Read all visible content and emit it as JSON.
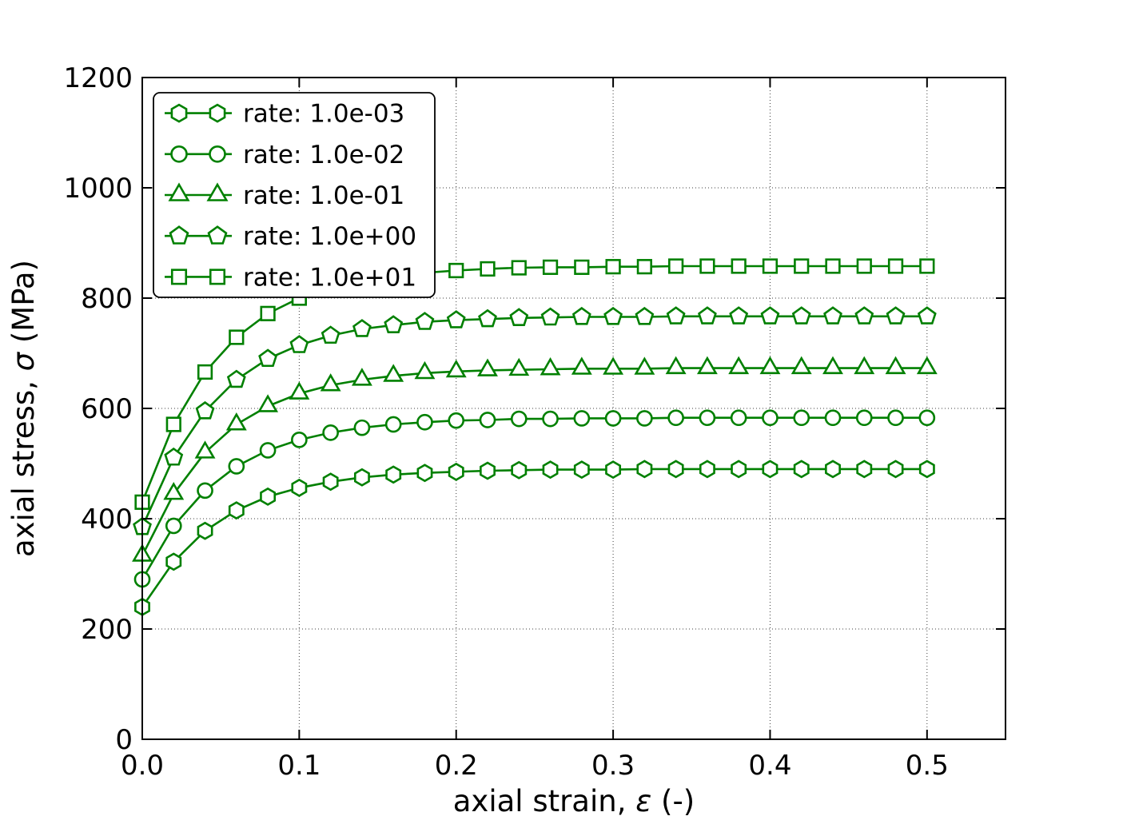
{
  "chart_data": {
    "type": "line",
    "title": "",
    "xlabel": "axial strain, ε (-)",
    "ylabel": "axial stress, σ (MPa)",
    "xlabel_parts": [
      "axial strain, ",
      "ε",
      " (-)"
    ],
    "ylabel_parts": [
      "axial stress, ",
      "σ",
      " (MPa)"
    ],
    "xlim": [
      0,
      0.55
    ],
    "ylim": [
      0,
      1200
    ],
    "xtick_values": [
      0,
      0.1,
      0.2,
      0.3,
      0.4,
      0.5
    ],
    "xtick_labels": [
      "0.0",
      "0.1",
      "0.2",
      "0.3",
      "0.4",
      "0.5"
    ],
    "ytick_values": [
      0,
      200,
      400,
      600,
      800,
      1000,
      1200
    ],
    "ytick_labels": [
      "0",
      "200",
      "400",
      "600",
      "800",
      "1000",
      "1200"
    ],
    "grid": true,
    "legend_position": "upper left",
    "color": "#008000",
    "marker_face": "#ffffff",
    "x": [
      0,
      0.02,
      0.04,
      0.06,
      0.08,
      0.1,
      0.12,
      0.14,
      0.16,
      0.18,
      0.2,
      0.22,
      0.24,
      0.26,
      0.28,
      0.3,
      0.32,
      0.34,
      0.36,
      0.38,
      0.4,
      0.42,
      0.44,
      0.46,
      0.48,
      0.5
    ],
    "series": [
      {
        "name": "rate: 1.0e-03",
        "marker": "hexagon",
        "y": [
          240,
          322,
          378,
          415,
          440,
          456,
          467,
          475,
          480,
          483,
          485,
          487,
          488,
          489,
          489,
          489,
          490,
          490,
          490,
          490,
          490,
          490,
          490,
          490,
          490,
          490
        ]
      },
      {
        "name": "rate: 1.0e-02",
        "marker": "circle",
        "y": [
          290,
          387,
          451,
          495,
          524,
          543,
          556,
          565,
          571,
          575,
          578,
          579,
          581,
          581,
          582,
          582,
          582,
          583,
          583,
          583,
          583,
          583,
          583,
          583,
          583,
          583
        ]
      },
      {
        "name": "rate: 1.0e-01",
        "marker": "triangle",
        "y": [
          333,
          445,
          520,
          571,
          604,
          627,
          642,
          652,
          659,
          664,
          667,
          669,
          670,
          671,
          672,
          672,
          672,
          673,
          673,
          673,
          673,
          673,
          673,
          673,
          673,
          673
        ]
      },
      {
        "name": "rate: 1.0e+00",
        "marker": "pentagon",
        "y": [
          385,
          511,
          595,
          652,
          690,
          715,
          732,
          744,
          751,
          757,
          760,
          762,
          764,
          765,
          766,
          766,
          766,
          767,
          767,
          767,
          767,
          767,
          767,
          767,
          767,
          767
        ]
      },
      {
        "name": "rate: 1.0e+01",
        "marker": "square",
        "y": [
          430,
          571,
          666,
          729,
          772,
          800,
          819,
          832,
          841,
          846,
          850,
          853,
          855,
          856,
          856,
          857,
          857,
          858,
          858,
          858,
          858,
          858,
          858,
          858,
          858,
          858
        ]
      }
    ]
  }
}
